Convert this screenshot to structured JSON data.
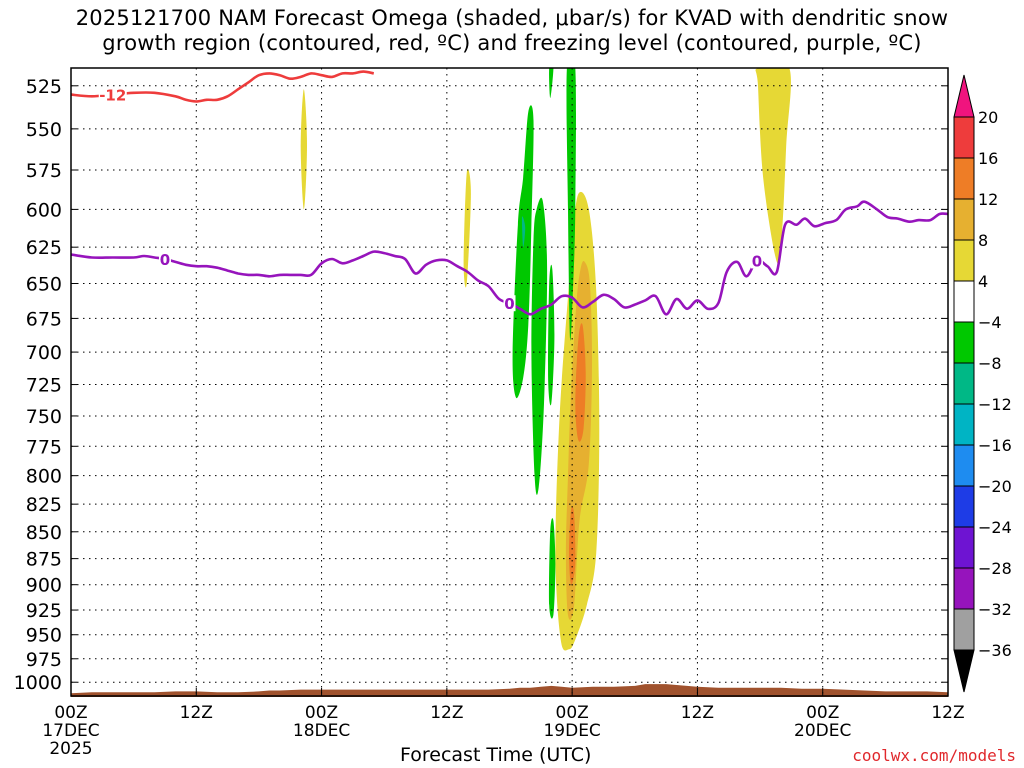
{
  "title": {
    "line1": "2025121700 NAM Forecast Omega (shaded, μbar/s) for KVAD with dendritic snow",
    "line2": "growth region (contoured, red, ºC) and freezing level (contoured, purple, ºC)"
  },
  "xaxis_title": "Forecast Time (UTC)",
  "credit": "coolwx.com/models",
  "chart_data": {
    "type": "heatmap",
    "title": "2025121700 NAM Forecast Omega (shaded, μbar/s) for KVAD with dendritic snow growth region (contoured, red, ºC) and freezing level (contoured, purple, ºC)",
    "xlabel": "Forecast Time (UTC)",
    "ylabel": "",
    "x_unit": "forecast hours from 2025121700",
    "xlim": [
      0,
      84
    ],
    "ylim": [
      1015,
      515
    ],
    "y_scale": "log-pressure (inverted)",
    "grid": true,
    "y_ticks": [
      525,
      550,
      575,
      600,
      625,
      650,
      675,
      700,
      725,
      750,
      775,
      800,
      825,
      850,
      875,
      900,
      925,
      950,
      975,
      1000
    ],
    "x_ticks": [
      {
        "hour": 0,
        "labels": [
          "00Z",
          "17DEC",
          "2025"
        ]
      },
      {
        "hour": 12,
        "labels": [
          "12Z"
        ]
      },
      {
        "hour": 24,
        "labels": [
          "00Z",
          "18DEC"
        ]
      },
      {
        "hour": 36,
        "labels": [
          "12Z"
        ]
      },
      {
        "hour": 48,
        "labels": [
          "00Z",
          "19DEC"
        ]
      },
      {
        "hour": 60,
        "labels": [
          "12Z"
        ]
      },
      {
        "hour": 72,
        "labels": [
          "00Z",
          "20DEC"
        ]
      },
      {
        "hour": 84,
        "labels": [
          "12Z"
        ]
      }
    ],
    "colorbar": {
      "labels": [
        "20",
        "16",
        "12",
        "8",
        "4",
        "-4",
        "-8",
        "-12",
        "-16",
        "-20",
        "-24",
        "-28",
        "-32",
        "-36"
      ],
      "colors": [
        "#f0147e",
        "#ee3c3c",
        "#ee7d26",
        "#e6b030",
        "#e6d835",
        "#ffffff",
        "#00c800",
        "#00b886",
        "#00b4c4",
        "#1e8cf0",
        "#1e3ce6",
        "#6e14d2",
        "#9614bc",
        "#a0a0a0",
        "#000000"
      ]
    },
    "omega_regions": [
      {
        "value": 4,
        "color": "#e6d835",
        "points": [
          [
            22.0,
            560
          ],
          [
            22.3,
            600
          ],
          [
            22.6,
            560
          ],
          [
            22.3,
            527
          ]
        ]
      },
      {
        "value": 4,
        "color": "#e6d835",
        "points": [
          [
            37.6,
            635
          ],
          [
            37.9,
            650
          ],
          [
            38.3,
            590
          ],
          [
            37.9,
            577
          ]
        ]
      },
      {
        "value": 4,
        "color": "#e6d835",
        "points": [
          [
            47.7,
            650
          ],
          [
            46.8,
            750
          ],
          [
            46.4,
            870
          ],
          [
            46.9,
            955
          ],
          [
            47.7,
            965
          ],
          [
            48.3,
            955
          ],
          [
            49.4,
            920
          ],
          [
            50.3,
            870
          ],
          [
            50.6,
            760
          ],
          [
            50.3,
            655
          ],
          [
            49.6,
            600
          ],
          [
            48.6,
            590
          ],
          [
            48.0,
            620
          ]
        ]
      },
      {
        "value": 8,
        "color": "#e6b030",
        "points": [
          [
            48.4,
            665
          ],
          [
            47.9,
            730
          ],
          [
            47.6,
            800
          ],
          [
            47.4,
            870
          ],
          [
            47.6,
            930
          ],
          [
            48.2,
            920
          ],
          [
            48.7,
            840
          ],
          [
            49.6,
            790
          ],
          [
            49.9,
            710
          ],
          [
            49.7,
            650
          ],
          [
            49.2,
            635
          ],
          [
            48.8,
            640
          ]
        ]
      },
      {
        "value": 12,
        "color": "#ee7d26",
        "points": [
          [
            48.6,
            690
          ],
          [
            48.3,
            740
          ],
          [
            48.6,
            770
          ],
          [
            49.1,
            760
          ],
          [
            49.3,
            715
          ],
          [
            49.0,
            680
          ]
        ]
      },
      {
        "value": 12,
        "color": "#ee7d26",
        "points": [
          [
            47.9,
            830
          ],
          [
            47.7,
            870
          ],
          [
            47.9,
            900
          ],
          [
            48.3,
            880
          ],
          [
            48.2,
            835
          ]
        ]
      },
      {
        "value": 4,
        "color": "#e6d835",
        "points": [
          [
            65.8,
            525
          ],
          [
            66.3,
            580
          ],
          [
            67.6,
            635
          ],
          [
            68.1,
            615
          ],
          [
            68.5,
            560
          ],
          [
            68.8,
            515
          ],
          [
            65.8,
            515
          ]
        ]
      },
      {
        "value": -4,
        "color": "#00c800",
        "points": [
          [
            42.8,
            610
          ],
          [
            42.3,
            700
          ],
          [
            42.6,
            735
          ],
          [
            43.3,
            720
          ],
          [
            43.8,
            680
          ],
          [
            44.1,
            610
          ],
          [
            44.3,
            545
          ],
          [
            43.8,
            540
          ],
          [
            43.3,
            580
          ]
        ]
      },
      {
        "value": -4,
        "color": "#00c800",
        "points": [
          [
            44.3,
            620
          ],
          [
            44.1,
            700
          ],
          [
            44.4,
            800
          ],
          [
            44.8,
            810
          ],
          [
            45.3,
            740
          ],
          [
            45.6,
            640
          ],
          [
            45.2,
            595
          ],
          [
            44.6,
            600
          ]
        ]
      },
      {
        "value": -4,
        "color": "#00c800",
        "points": [
          [
            45.8,
            650
          ],
          [
            45.7,
            720
          ],
          [
            46.0,
            740
          ],
          [
            46.3,
            690
          ],
          [
            46.1,
            640
          ]
        ]
      },
      {
        "value": -4,
        "color": "#00c800",
        "points": [
          [
            45.9,
            850
          ],
          [
            45.8,
            920
          ],
          [
            46.2,
            930
          ],
          [
            46.4,
            880
          ],
          [
            46.2,
            840
          ]
        ]
      },
      {
        "value": -4,
        "color": "#00c800",
        "points": [
          [
            45.8,
            515
          ],
          [
            45.9,
            532
          ],
          [
            46.2,
            515
          ]
        ]
      },
      {
        "value": -4,
        "color": "#00c800",
        "points": [
          [
            47.5,
            515
          ],
          [
            47.6,
            600
          ],
          [
            47.8,
            690
          ],
          [
            48.1,
            650
          ],
          [
            48.3,
            600
          ],
          [
            48.3,
            515
          ]
        ]
      },
      {
        "value": -8,
        "color": "#00b886",
        "points": [
          [
            43.2,
            605
          ],
          [
            43.3,
            625
          ],
          [
            43.5,
            612
          ]
        ]
      }
    ],
    "dgz_contour": {
      "label": "-12",
      "color": "#ee3c3c",
      "points": [
        [
          0,
          530
        ],
        [
          2,
          531
        ],
        [
          4,
          530
        ],
        [
          6,
          529
        ],
        [
          8,
          529
        ],
        [
          10,
          531
        ],
        [
          11,
          533
        ],
        [
          12,
          534
        ],
        [
          13,
          533
        ],
        [
          14,
          533
        ],
        [
          15,
          531
        ],
        [
          16,
          527
        ],
        [
          17,
          523
        ],
        [
          18,
          519
        ],
        [
          19,
          518
        ],
        [
          20,
          519
        ],
        [
          21,
          521
        ],
        [
          22,
          520
        ],
        [
          23,
          518
        ],
        [
          24,
          519
        ],
        [
          25,
          520
        ],
        [
          26,
          518
        ],
        [
          27,
          518
        ],
        [
          28,
          517
        ],
        [
          29,
          518
        ]
      ]
    },
    "freezing_level": {
      "label": "0",
      "color": "#9614bc",
      "points": [
        [
          0,
          630
        ],
        [
          2,
          632
        ],
        [
          4,
          632
        ],
        [
          6,
          632
        ],
        [
          7,
          631
        ],
        [
          8,
          632
        ],
        [
          9,
          633
        ],
        [
          10,
          635
        ],
        [
          11,
          637
        ],
        [
          12,
          638
        ],
        [
          13,
          638
        ],
        [
          14,
          639
        ],
        [
          15,
          641
        ],
        [
          16,
          643
        ],
        [
          17,
          644
        ],
        [
          18,
          644
        ],
        [
          19,
          645
        ],
        [
          20,
          644
        ],
        [
          21,
          644
        ],
        [
          22,
          644
        ],
        [
          23,
          644
        ],
        [
          24,
          636
        ],
        [
          25,
          633
        ],
        [
          26,
          636
        ],
        [
          27,
          634
        ],
        [
          28,
          631
        ],
        [
          29,
          628
        ],
        [
          30,
          629
        ],
        [
          31,
          631
        ],
        [
          32,
          633
        ],
        [
          33,
          643
        ],
        [
          34,
          637
        ],
        [
          35,
          634
        ],
        [
          36,
          634
        ],
        [
          37,
          638
        ],
        [
          38,
          642
        ],
        [
          39,
          648
        ],
        [
          40,
          652
        ],
        [
          41,
          661
        ],
        [
          42,
          664
        ],
        [
          43,
          668
        ],
        [
          44,
          672
        ],
        [
          45,
          668
        ],
        [
          46,
          665
        ],
        [
          47,
          659
        ],
        [
          48,
          660
        ],
        [
          49,
          667
        ],
        [
          50,
          663
        ],
        [
          51,
          658
        ],
        [
          52,
          661
        ],
        [
          53,
          667
        ],
        [
          54,
          665
        ],
        [
          55,
          662
        ],
        [
          56,
          659
        ],
        [
          57,
          672
        ],
        [
          58,
          661
        ],
        [
          59,
          668
        ],
        [
          60,
          662
        ],
        [
          61,
          668
        ],
        [
          62,
          664
        ],
        [
          62.8,
          642
        ],
        [
          63.8,
          635
        ],
        [
          64.7,
          645
        ],
        [
          65.7,
          634
        ],
        [
          66.7,
          638
        ],
        [
          67.6,
          642
        ],
        [
          68.4,
          610
        ],
        [
          69.5,
          610
        ],
        [
          70.3,
          606
        ],
        [
          71.2,
          611
        ],
        [
          72.2,
          609
        ],
        [
          73.3,
          607
        ],
        [
          74.2,
          600
        ],
        [
          75.3,
          598
        ],
        [
          76.0,
          595
        ],
        [
          77.2,
          600
        ],
        [
          78.2,
          605
        ],
        [
          79.2,
          606
        ],
        [
          80.3,
          608
        ],
        [
          81.2,
          607
        ],
        [
          82.3,
          607
        ],
        [
          83.2,
          603
        ],
        [
          84,
          603
        ]
      ]
    },
    "terrain_surface": {
      "color": "#a0522d",
      "points": [
        [
          0,
          1012
        ],
        [
          2,
          1011
        ],
        [
          4,
          1011
        ],
        [
          6,
          1011
        ],
        [
          8,
          1011
        ],
        [
          10,
          1010
        ],
        [
          12,
          1010
        ],
        [
          14,
          1011
        ],
        [
          16,
          1011
        ],
        [
          18,
          1010
        ],
        [
          19,
          1009
        ],
        [
          20,
          1009
        ],
        [
          22,
          1008
        ],
        [
          24,
          1008
        ],
        [
          26,
          1008
        ],
        [
          28,
          1008
        ],
        [
          30,
          1008
        ],
        [
          32,
          1008
        ],
        [
          34,
          1008
        ],
        [
          36,
          1008
        ],
        [
          38,
          1008
        ],
        [
          40,
          1008
        ],
        [
          42,
          1007
        ],
        [
          43,
          1006
        ],
        [
          44,
          1006
        ],
        [
          45,
          1005
        ],
        [
          46,
          1004
        ],
        [
          47,
          1005
        ],
        [
          48,
          1006
        ],
        [
          50,
          1005
        ],
        [
          52,
          1005
        ],
        [
          54,
          1004
        ],
        [
          55,
          1002
        ],
        [
          56,
          1002
        ],
        [
          57,
          1002
        ],
        [
          58,
          1003
        ],
        [
          59,
          1004
        ],
        [
          60,
          1005
        ],
        [
          62,
          1006
        ],
        [
          64,
          1006
        ],
        [
          66,
          1006
        ],
        [
          68,
          1006
        ],
        [
          70,
          1007
        ],
        [
          72,
          1007
        ],
        [
          74,
          1008
        ],
        [
          76,
          1009
        ],
        [
          78,
          1010
        ],
        [
          80,
          1010
        ],
        [
          82,
          1010
        ],
        [
          84,
          1011
        ]
      ]
    }
  }
}
